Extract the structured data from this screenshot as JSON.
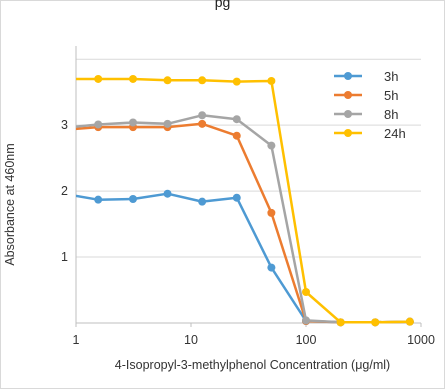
{
  "top_text": "pg",
  "chart_data": {
    "type": "line",
    "title": "",
    "xlabel": "4-Isopropyl-3-methylphenol Concentration (μg/ml)",
    "ylabel": "Absorbance at 460nm",
    "x_scale": "log",
    "xlim": [
      1,
      1000
    ],
    "ylim": [
      0,
      4.2
    ],
    "x_ticks": [
      1,
      10,
      100,
      1000
    ],
    "x_tick_labels": [
      "1",
      "10",
      "100",
      "1000"
    ],
    "y_ticks": [
      1,
      2,
      3
    ],
    "y_tick_labels": [
      "1",
      "2",
      "3"
    ],
    "grid": "horizontal",
    "legend_position": "top-right",
    "x": [
      0.78,
      1.56,
      3.13,
      6.25,
      12.5,
      25,
      50,
      100,
      200,
      400,
      800
    ],
    "series": [
      {
        "name": "3h",
        "color": "#4e9ad3",
        "values": [
          1.96,
          1.87,
          1.88,
          1.96,
          1.84,
          1.9,
          0.84,
          0.03,
          0.01,
          0.01,
          0.02
        ]
      },
      {
        "name": "5h",
        "color": "#ec7c30",
        "values": [
          2.93,
          2.97,
          2.97,
          2.97,
          3.02,
          2.84,
          1.67,
          0.03,
          0.01,
          0.01,
          0.02
        ]
      },
      {
        "name": "8h",
        "color": "#a5a5a5",
        "values": [
          2.96,
          3.01,
          3.04,
          3.02,
          3.15,
          3.09,
          2.69,
          0.04,
          0.01,
          0.01,
          0.02
        ]
      },
      {
        "name": "24h",
        "color": "#ffc000",
        "values": [
          3.7,
          3.7,
          3.7,
          3.68,
          3.68,
          3.66,
          3.67,
          0.47,
          0.01,
          0.01,
          0.02
        ]
      }
    ]
  }
}
